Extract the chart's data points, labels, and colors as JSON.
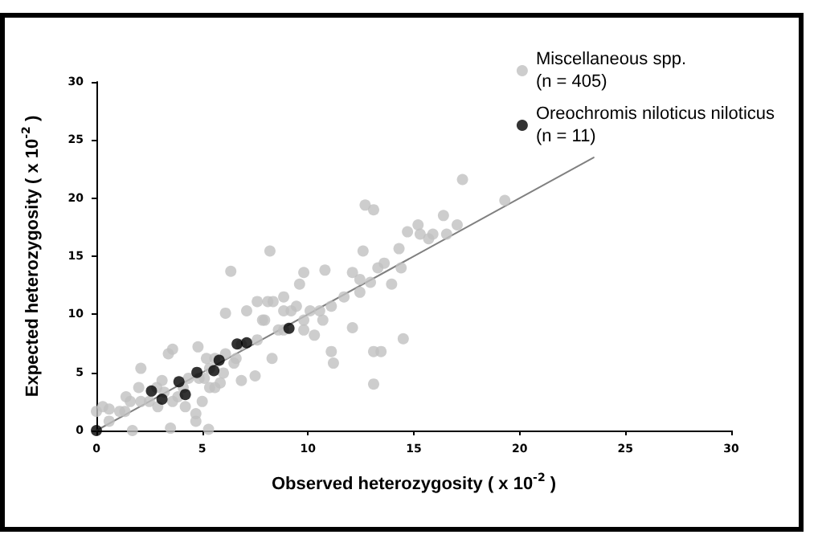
{
  "chart_data": {
    "type": "scatter",
    "xlabel": "Observed heterozygosity ( x 10$^{-2}$ )",
    "ylabel": "Expected heterozygosity ( x 10$^{-2}$ )",
    "xlim": [
      0,
      30
    ],
    "ylim": [
      0,
      30
    ],
    "xticks": [
      0,
      5,
      10,
      15,
      20,
      25,
      30
    ],
    "yticks": [
      0,
      5,
      10,
      15,
      20,
      25,
      30
    ],
    "grid": false,
    "legend": "top right",
    "marker": "circle",
    "series": [
      {
        "name": "Miscellaneous spp.\n(n = 405)",
        "color": "#c0c0c0",
        "x": [
          0,
          0.3,
          0.6,
          1.1,
          1.4,
          1.7,
          1.6,
          2.1,
          2.0,
          2.5,
          2.9,
          3.4,
          3.5,
          3.2,
          3.6,
          4.2,
          4.1,
          4.7,
          4.7,
          4.8,
          5.0,
          5.1,
          5.2,
          5.3,
          5.6,
          5.85,
          6.1,
          6.1,
          6.35,
          6.5,
          6.85,
          7.1,
          7.5,
          7.6,
          7.85,
          8.1,
          8.2,
          8.3,
          8.6,
          8.85,
          9.2,
          9.6,
          9.8,
          10.1,
          10.3,
          10.7,
          10.8,
          11.1,
          11.2,
          11.1,
          11.7,
          12.1,
          12.1,
          12.45,
          12.6,
          12.7,
          12.95,
          13.1,
          13.1,
          13.1,
          13.3,
          13.45,
          13.95,
          14.3,
          14.4,
          14.5,
          14.7,
          15.2,
          15.3,
          15.7,
          15.9,
          16.4,
          16.55,
          17.05,
          17.3,
          19.3,
          0.6,
          3.1,
          4.35,
          4.85,
          6.0,
          6.85,
          7.6,
          8.35,
          8.85,
          9.45,
          9.8,
          7.95,
          6.6,
          5.35,
          3.85,
          2.1,
          2.85,
          1.35,
          3.6,
          5.35,
          5.6,
          8.85,
          9.8,
          10.55,
          13.6,
          12.45
        ],
        "values": [
          1.65,
          2.05,
          0.8,
          1.65,
          2.9,
          0,
          2.5,
          5.35,
          3.7,
          2.5,
          2.05,
          6.6,
          0.2,
          3.3,
          7.0,
          2.05,
          3.7,
          0.8,
          1.45,
          7.2,
          2.5,
          4.5,
          6.2,
          0.1,
          3.7,
          4.1,
          6.6,
          10.1,
          13.7,
          5.8,
          4.3,
          10.3,
          4.7,
          7.8,
          9.5,
          11.1,
          15.45,
          6.2,
          8.65,
          11.5,
          10.3,
          12.6,
          13.6,
          10.3,
          8.2,
          9.5,
          13.8,
          6.8,
          5.8,
          10.7,
          11.5,
          13.6,
          8.85,
          11.9,
          15.45,
          19.4,
          12.75,
          19.0,
          4.0,
          6.8,
          14.0,
          6.8,
          12.6,
          15.65,
          14.0,
          7.9,
          17.1,
          17.7,
          16.9,
          16.5,
          16.9,
          18.5,
          16.9,
          17.7,
          21.6,
          19.8,
          1.85,
          4.3,
          4.5,
          4.5,
          4.95,
          7.4,
          11.1,
          11.1,
          10.3,
          10.7,
          9.5,
          9.5,
          6.2,
          3.7,
          2.9,
          2.5,
          3.7,
          1.65,
          2.5,
          5.35,
          6.2,
          8.65,
          8.65,
          10.3,
          14.4,
          13.0
        ]
      },
      {
        "name": "Oreochromis niloticus niloticus\n(n = 11)",
        "color": "#000000",
        "x": [
          0,
          2.6,
          3.1,
          3.9,
          4.2,
          4.75,
          5.55,
          5.8,
          6.65,
          7.1,
          9.1
        ],
        "values": [
          0,
          3.4,
          2.7,
          4.2,
          3.1,
          5.0,
          5.15,
          6.05,
          7.45,
          7.55,
          8.8
        ]
      },
      {
        "type": "line",
        "color": "#808080",
        "marker": "none",
        "x": [
          0,
          23.5
        ],
        "values": [
          0,
          23.5
        ]
      }
    ]
  }
}
